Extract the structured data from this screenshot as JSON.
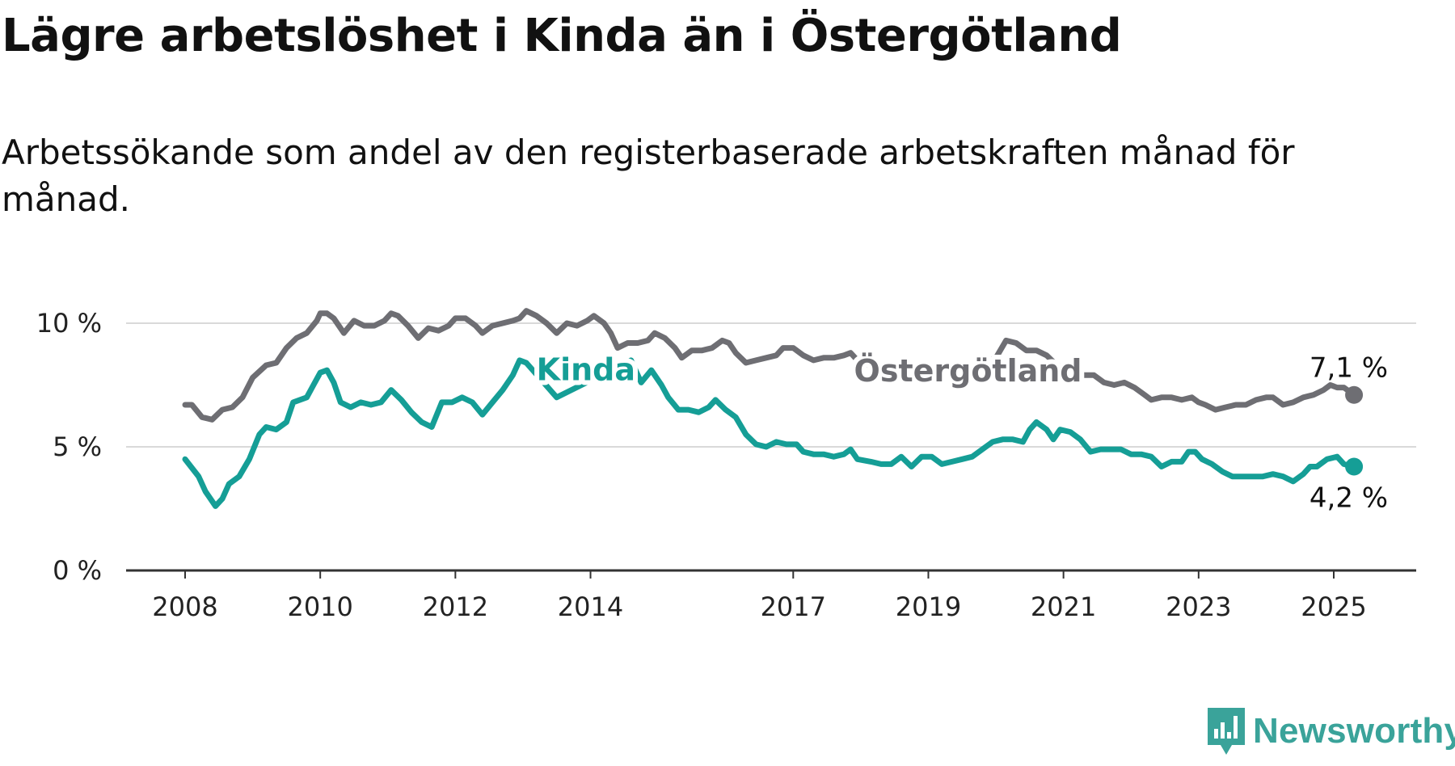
{
  "title": "Lägre arbetslöshet i Kinda än i Östergötland",
  "subtitle": "Arbetssökande som andel av den registerbaserade arbetskraften månad för månad.",
  "brand": {
    "name": "Newsworthy",
    "icon": "newsworthy-logo-icon",
    "color": "#3aa39a"
  },
  "chart_data": {
    "type": "line",
    "x_unit": "year",
    "xlim": [
      2007.5,
      2026.1
    ],
    "ylim": [
      0,
      11
    ],
    "y_ticks": [
      {
        "value": 0,
        "label": "0 %"
      },
      {
        "value": 5,
        "label": "5 %"
      },
      {
        "value": 10,
        "label": "10 %"
      }
    ],
    "x_ticks": [
      {
        "value": 2008,
        "label": "2008"
      },
      {
        "value": 2010,
        "label": "2010"
      },
      {
        "value": 2012,
        "label": "2012"
      },
      {
        "value": 2014,
        "label": "2014"
      },
      {
        "value": 2017,
        "label": "2017"
      },
      {
        "value": 2019,
        "label": "2019"
      },
      {
        "value": 2021,
        "label": "2021"
      },
      {
        "value": 2023,
        "label": "2023"
      },
      {
        "value": 2025,
        "label": "2025"
      }
    ],
    "grid": true,
    "series": [
      {
        "name": "Östergötland",
        "color": "#6e6e73",
        "end_label": "7,1 %",
        "label_x": 2017.9,
        "label_y": 7.65,
        "points": [
          [
            2008.0,
            6.7
          ],
          [
            2008.1,
            6.7
          ],
          [
            2008.25,
            6.2
          ],
          [
            2008.4,
            6.1
          ],
          [
            2008.55,
            6.5
          ],
          [
            2008.7,
            6.6
          ],
          [
            2008.85,
            7.0
          ],
          [
            2009.0,
            7.8
          ],
          [
            2009.2,
            8.3
          ],
          [
            2009.35,
            8.4
          ],
          [
            2009.5,
            9.0
          ],
          [
            2009.65,
            9.4
          ],
          [
            2009.8,
            9.6
          ],
          [
            2009.95,
            10.1
          ],
          [
            2010.0,
            10.4
          ],
          [
            2010.1,
            10.4
          ],
          [
            2010.2,
            10.2
          ],
          [
            2010.35,
            9.6
          ],
          [
            2010.5,
            10.1
          ],
          [
            2010.65,
            9.9
          ],
          [
            2010.8,
            9.9
          ],
          [
            2010.95,
            10.1
          ],
          [
            2011.05,
            10.4
          ],
          [
            2011.15,
            10.3
          ],
          [
            2011.3,
            9.9
          ],
          [
            2011.45,
            9.4
          ],
          [
            2011.6,
            9.8
          ],
          [
            2011.75,
            9.7
          ],
          [
            2011.9,
            9.9
          ],
          [
            2012.0,
            10.2
          ],
          [
            2012.15,
            10.2
          ],
          [
            2012.3,
            9.9
          ],
          [
            2012.4,
            9.6
          ],
          [
            2012.55,
            9.9
          ],
          [
            2012.7,
            10.0
          ],
          [
            2012.85,
            10.1
          ],
          [
            2012.95,
            10.2
          ],
          [
            2013.05,
            10.5
          ],
          [
            2013.2,
            10.3
          ],
          [
            2013.35,
            10.0
          ],
          [
            2013.5,
            9.6
          ],
          [
            2013.65,
            10.0
          ],
          [
            2013.8,
            9.9
          ],
          [
            2013.95,
            10.1
          ],
          [
            2014.05,
            10.3
          ],
          [
            2014.2,
            10.0
          ],
          [
            2014.3,
            9.6
          ],
          [
            2014.4,
            9.0
          ],
          [
            2014.55,
            9.2
          ],
          [
            2014.7,
            9.2
          ],
          [
            2014.85,
            9.3
          ],
          [
            2014.95,
            9.6
          ],
          [
            2015.1,
            9.4
          ],
          [
            2015.25,
            9.0
          ],
          [
            2015.35,
            8.6
          ],
          [
            2015.5,
            8.9
          ],
          [
            2015.65,
            8.9
          ],
          [
            2015.8,
            9.0
          ],
          [
            2015.95,
            9.3
          ],
          [
            2016.05,
            9.2
          ],
          [
            2016.15,
            8.8
          ],
          [
            2016.3,
            8.4
          ],
          [
            2016.45,
            8.5
          ],
          [
            2016.6,
            8.6
          ],
          [
            2016.75,
            8.7
          ],
          [
            2016.85,
            9.0
          ],
          [
            2017.0,
            9.0
          ],
          [
            2017.15,
            8.7
          ],
          [
            2017.3,
            8.5
          ],
          [
            2017.45,
            8.6
          ],
          [
            2017.6,
            8.6
          ],
          [
            2017.75,
            8.7
          ],
          [
            2017.85,
            8.8
          ],
          [
            2017.95,
            8.5
          ],
          [
            2018.2,
            8.2
          ],
          [
            2019.0,
            7.9
          ],
          [
            2019.8,
            8.4
          ],
          [
            2020.0,
            8.6
          ],
          [
            2020.15,
            9.3
          ],
          [
            2020.3,
            9.2
          ],
          [
            2020.45,
            8.9
          ],
          [
            2020.6,
            8.9
          ],
          [
            2020.75,
            8.7
          ],
          [
            2020.9,
            8.3
          ],
          [
            2021.1,
            8.2
          ],
          [
            2021.3,
            7.9
          ],
          [
            2021.45,
            7.9
          ],
          [
            2021.6,
            7.6
          ],
          [
            2021.75,
            7.5
          ],
          [
            2021.9,
            7.6
          ],
          [
            2022.05,
            7.4
          ],
          [
            2022.2,
            7.1
          ],
          [
            2022.3,
            6.9
          ],
          [
            2022.45,
            7.0
          ],
          [
            2022.6,
            7.0
          ],
          [
            2022.75,
            6.9
          ],
          [
            2022.9,
            7.0
          ],
          [
            2023.0,
            6.8
          ],
          [
            2023.1,
            6.7
          ],
          [
            2023.25,
            6.5
          ],
          [
            2023.4,
            6.6
          ],
          [
            2023.55,
            6.7
          ],
          [
            2023.7,
            6.7
          ],
          [
            2023.85,
            6.9
          ],
          [
            2024.0,
            7.0
          ],
          [
            2024.1,
            7.0
          ],
          [
            2024.25,
            6.7
          ],
          [
            2024.4,
            6.8
          ],
          [
            2024.55,
            7.0
          ],
          [
            2024.7,
            7.1
          ],
          [
            2024.85,
            7.3
          ],
          [
            2024.95,
            7.5
          ],
          [
            2025.05,
            7.4
          ],
          [
            2025.15,
            7.4
          ],
          [
            2025.3,
            7.1
          ]
        ]
      },
      {
        "name": "Kinda",
        "color": "#159e96",
        "end_label": "4,2 %",
        "label_x": 2013.2,
        "label_y": 7.7,
        "points": [
          [
            2008.0,
            4.5
          ],
          [
            2008.2,
            3.8
          ],
          [
            2008.3,
            3.2
          ],
          [
            2008.45,
            2.6
          ],
          [
            2008.55,
            2.9
          ],
          [
            2008.65,
            3.5
          ],
          [
            2008.8,
            3.8
          ],
          [
            2008.95,
            4.5
          ],
          [
            2009.1,
            5.5
          ],
          [
            2009.2,
            5.8
          ],
          [
            2009.35,
            5.7
          ],
          [
            2009.5,
            6.0
          ],
          [
            2009.6,
            6.8
          ],
          [
            2009.8,
            7.0
          ],
          [
            2009.9,
            7.5
          ],
          [
            2010.0,
            8.0
          ],
          [
            2010.1,
            8.1
          ],
          [
            2010.2,
            7.6
          ],
          [
            2010.3,
            6.8
          ],
          [
            2010.45,
            6.6
          ],
          [
            2010.6,
            6.8
          ],
          [
            2010.75,
            6.7
          ],
          [
            2010.9,
            6.8
          ],
          [
            2011.05,
            7.3
          ],
          [
            2011.2,
            6.9
          ],
          [
            2011.35,
            6.4
          ],
          [
            2011.5,
            6.0
          ],
          [
            2011.65,
            5.8
          ],
          [
            2011.8,
            6.8
          ],
          [
            2011.95,
            6.8
          ],
          [
            2012.1,
            7.0
          ],
          [
            2012.25,
            6.8
          ],
          [
            2012.4,
            6.3
          ],
          [
            2012.55,
            6.8
          ],
          [
            2012.7,
            7.3
          ],
          [
            2012.85,
            7.9
          ],
          [
            2012.95,
            8.5
          ],
          [
            2013.05,
            8.4
          ],
          [
            2013.5,
            7.0
          ],
          [
            2014.6,
            8.5
          ],
          [
            2014.75,
            7.6
          ],
          [
            2014.9,
            8.1
          ],
          [
            2015.05,
            7.5
          ],
          [
            2015.15,
            7.0
          ],
          [
            2015.3,
            6.5
          ],
          [
            2015.45,
            6.5
          ],
          [
            2015.6,
            6.4
          ],
          [
            2015.75,
            6.6
          ],
          [
            2015.85,
            6.9
          ],
          [
            2016.0,
            6.5
          ],
          [
            2016.15,
            6.2
          ],
          [
            2016.3,
            5.5
          ],
          [
            2016.45,
            5.1
          ],
          [
            2016.6,
            5.0
          ],
          [
            2016.75,
            5.2
          ],
          [
            2016.9,
            5.1
          ],
          [
            2017.05,
            5.1
          ],
          [
            2017.15,
            4.8
          ],
          [
            2017.3,
            4.7
          ],
          [
            2017.45,
            4.7
          ],
          [
            2017.6,
            4.6
          ],
          [
            2017.75,
            4.7
          ],
          [
            2017.85,
            4.9
          ],
          [
            2017.95,
            4.5
          ],
          [
            2018.15,
            4.4
          ],
          [
            2018.3,
            4.3
          ],
          [
            2018.45,
            4.3
          ],
          [
            2018.6,
            4.6
          ],
          [
            2018.75,
            4.2
          ],
          [
            2018.9,
            4.6
          ],
          [
            2019.05,
            4.6
          ],
          [
            2019.2,
            4.3
          ],
          [
            2019.35,
            4.4
          ],
          [
            2019.5,
            4.5
          ],
          [
            2019.65,
            4.6
          ],
          [
            2019.8,
            4.9
          ],
          [
            2019.95,
            5.2
          ],
          [
            2020.1,
            5.3
          ],
          [
            2020.25,
            5.3
          ],
          [
            2020.4,
            5.2
          ],
          [
            2020.5,
            5.7
          ],
          [
            2020.6,
            6.0
          ],
          [
            2020.75,
            5.7
          ],
          [
            2020.85,
            5.3
          ],
          [
            2020.95,
            5.7
          ],
          [
            2021.1,
            5.6
          ],
          [
            2021.25,
            5.3
          ],
          [
            2021.4,
            4.8
          ],
          [
            2021.55,
            4.9
          ],
          [
            2021.7,
            4.9
          ],
          [
            2021.85,
            4.9
          ],
          [
            2022.0,
            4.7
          ],
          [
            2022.15,
            4.7
          ],
          [
            2022.3,
            4.6
          ],
          [
            2022.45,
            4.2
          ],
          [
            2022.6,
            4.4
          ],
          [
            2022.75,
            4.4
          ],
          [
            2022.85,
            4.8
          ],
          [
            2022.95,
            4.8
          ],
          [
            2023.05,
            4.5
          ],
          [
            2023.2,
            4.3
          ],
          [
            2023.35,
            4.0
          ],
          [
            2023.5,
            3.8
          ],
          [
            2023.65,
            3.8
          ],
          [
            2023.8,
            3.8
          ],
          [
            2023.95,
            3.8
          ],
          [
            2024.1,
            3.9
          ],
          [
            2024.25,
            3.8
          ],
          [
            2024.4,
            3.6
          ],
          [
            2024.55,
            3.9
          ],
          [
            2024.65,
            4.2
          ],
          [
            2024.75,
            4.2
          ],
          [
            2024.9,
            4.5
          ],
          [
            2025.05,
            4.6
          ],
          [
            2025.15,
            4.3
          ],
          [
            2025.3,
            4.2
          ]
        ]
      }
    ]
  }
}
